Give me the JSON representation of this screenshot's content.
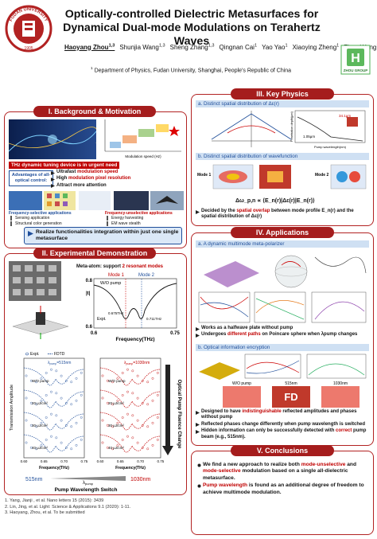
{
  "header": {
    "title": [
      "Optically-controlled Dielectric Metasurfaces for",
      "Dynamical Dual-mode Modulations on Terahertz Waves"
    ],
    "authors": [
      {
        "name": "Haoyang Zhou",
        "sup": "1,3"
      },
      {
        "name": "Shunjia Wang",
        "sup": "1,3"
      },
      {
        "name": "Sheng Zhang",
        "sup": "1,3"
      },
      {
        "name": "Qingnan Cai",
        "sup": "1"
      },
      {
        "name": "Yao Yao",
        "sup": "1"
      },
      {
        "name": "Xiaoying Zheng",
        "sup": "1"
      },
      {
        "name": "Zhuo Wang",
        "sup": "1"
      },
      {
        "name": "Zhensheng Tao",
        "sup": "1,*"
      },
      {
        "name": "Qiong He",
        "sup": "1,2,*"
      },
      {
        "name": "Lei Zhou",
        "sup": "1,*"
      }
    ],
    "affiliation_sup": "1",
    "affiliation": "Department of Physics, Fudan University, Shanghai, People's Republic of China",
    "seal": [
      "FUDAN UNIVERSITY",
      "1905"
    ],
    "logo": "ZHOU GROUP"
  },
  "background": {
    "title": "I.  Background & Motivation",
    "plot_xlabel": "Modulation speed (Hz)",
    "banner": "THz dynamic tuning device is in urgent need",
    "advantages_label": "Advantages of all-optical control:",
    "advantages": [
      [
        "Ultrafast",
        " modulation speed"
      ],
      [
        "High",
        " modulation pixel resolution"
      ],
      [
        "Attract more attention"
      ]
    ],
    "selective_caption": "Frequency-selective applications",
    "selective_items": [
      "Sensing application",
      "Structural color generation"
    ],
    "unselective_caption": "Frequency-unselective applications",
    "unselective_items": [
      "Energy harvesting",
      "EM wave stealth"
    ],
    "conclusion": "Realize functionalities integration within just one single metasurface"
  },
  "experiment": {
    "title": "II.  Experimental Demonstration",
    "meta_atom": [
      "Meta-atom: support ",
      "2 resonant modes"
    ],
    "modes": [
      "Mode 1",
      "Mode 2"
    ],
    "top_plot": {
      "legend": "W/O pump",
      "expt": "Expt.",
      "peaks": [
        "0.675THz",
        "0.711THz"
      ],
      "ylabel": "|t|",
      "yticks": [
        "0.8",
        "0.6"
      ],
      "xticks": [
        "0.6",
        "0.75"
      ],
      "xlabel": "Frequency(THz)"
    },
    "legend": [
      "Expt.",
      "FDTD"
    ],
    "pump_left": [
      "λ",
      "pump",
      "=515nm"
    ],
    "pump_right": [
      "λ",
      "pump",
      "=1030nm"
    ],
    "fluences": [
      "W/O pump",
      "20 μJ/cm²",
      "30 μJ/cm²",
      "40 μJ/cm²"
    ],
    "ylabel": "Transmission Amplitude",
    "xlabel": "Frequency(THz)",
    "xticks": [
      "0.60",
      "0.65",
      "0.70",
      "0.75"
    ],
    "fluence_axis": "Optical Pump Fluence Change",
    "switch": [
      "515nm",
      "λ",
      "pump",
      "1030nm"
    ],
    "switch_label": "Pump Wavelength Switch"
  },
  "references": [
    "1.  Yang, Jianji , et al. Nano letters 15 (2015): 3439",
    "2.  Lin, Jing, et al. Light: Science & Applications 9.1 (2020): 1-11.",
    "3.  Haoyang, Zhou, et al. To be submitted"
  ],
  "physics": {
    "title": "III.  Key Physics",
    "a": "a. Distinct spatial distribution of Δε(r)",
    "depth_ylabel": "Penetration depth(μm)",
    "depth_xlabel": "Pump wavelength(nm)",
    "depths": [
      "34.1μm",
      "1.05μm"
    ],
    "b": "b. Distinct spatial distribution of wavefunction",
    "modes": [
      "Mode 1",
      "Mode 2"
    ],
    "formula": "Δω_p,n ∝ ⟨E_n(r)|Δε(r)|E_n(r)⟩",
    "bullet": [
      "Decided by the ",
      "spatial overlap",
      " between mode profile E_n(r) and the spatial distribution of Δε(r)"
    ]
  },
  "applications": {
    "title": "IV.  Applications",
    "a": "a. A dynamic multimode meta-polarizer",
    "a_bullets": [
      [
        "Works as a halfwave plate without pump"
      ],
      [
        "Undergoes ",
        "different paths",
        " on Poincare sphere when λpump changes"
      ]
    ],
    "b": "b. Optical information encryption",
    "panels": [
      "W/O pump",
      "515nm",
      "1030nm"
    ],
    "hidden": "FD",
    "b_bullets": [
      [
        "Designed to have ",
        "indistinguishable",
        " reflected amplitudes and phases without pump"
      ],
      [
        "Reflected phases change differently when pump wavelength is switched"
      ],
      [
        "Hidden information can only be successfully detected with ",
        "correct",
        " pump beam (e.g., 515nm)."
      ]
    ]
  },
  "conclusions": {
    "title": "V.  Conclusions",
    "bullets": [
      [
        "We find a new approach to realize both ",
        "mode-unselective",
        " and ",
        "mode-selective",
        " modulation based on a single all-dielectric metasurface."
      ],
      [
        "",
        "Pump wavelength",
        " is found as an additional degree of freedom to achieve multimode modulation."
      ]
    ]
  }
}
